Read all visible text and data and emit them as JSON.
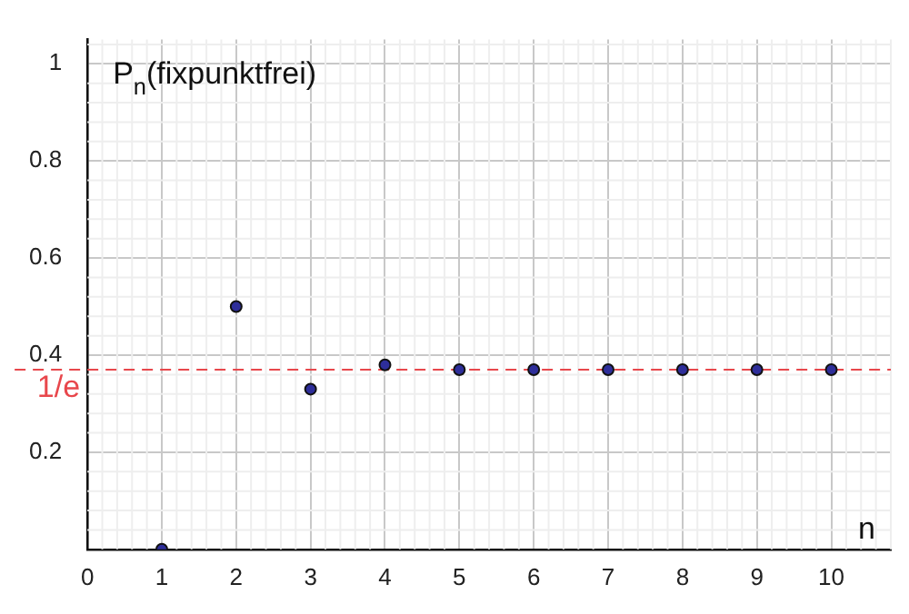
{
  "chart_data": {
    "type": "scatter",
    "ylabel": "P$_{n}$(fixpunktfrei)",
    "xlabel": "n",
    "x": [
      1,
      2,
      3,
      4,
      5,
      6,
      7,
      8,
      9,
      10
    ],
    "series": [
      {
        "color": "#2e2e9a",
        "values": [
          0,
          0.5,
          0.33,
          0.38,
          0.37,
          0.37,
          0.37,
          0.37,
          0.37,
          0.37
        ]
      }
    ],
    "xlim": [
      0,
      10.8
    ],
    "ylim": [
      0,
      1.05
    ],
    "xticks": [
      0,
      1,
      2,
      3,
      4,
      5,
      6,
      7,
      8,
      9,
      10
    ],
    "yticks": [
      0.2,
      0.4,
      0.6,
      0.8,
      1
    ],
    "ref_lines": [
      {
        "axis": "y",
        "value": 0.37,
        "label": "1/e",
        "color": "#e8474c",
        "line_style": "dashed"
      }
    ],
    "grid": true,
    "marker": "circle",
    "legend": false
  }
}
